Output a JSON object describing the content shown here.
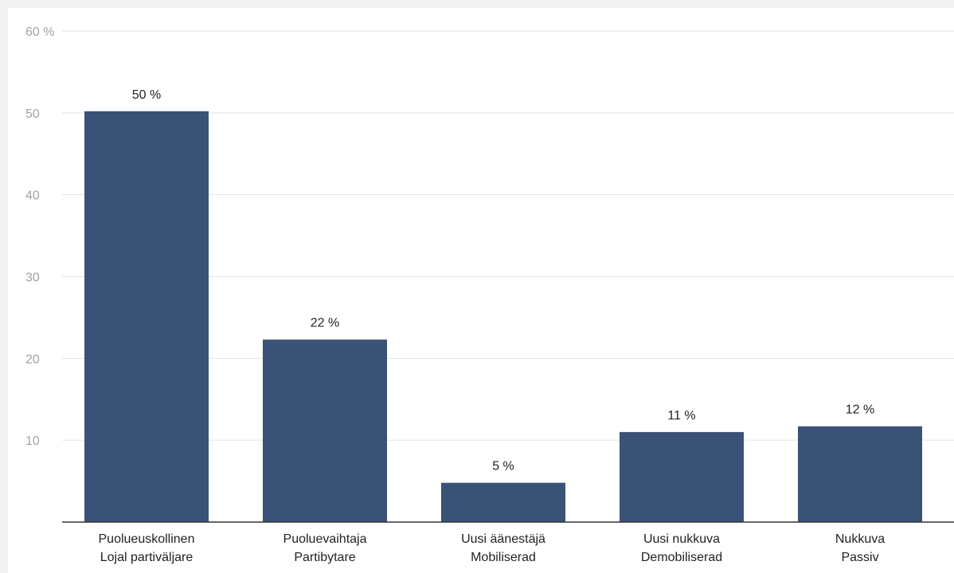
{
  "chart_data": {
    "type": "bar",
    "categories": [
      [
        "Puolueuskollinen",
        "Lojal partiväljare"
      ],
      [
        "Puoluevaihtaja",
        "Partibytare"
      ],
      [
        "Uusi äänestäjä",
        "Mobiliserad"
      ],
      [
        "Uusi nukkuva",
        "Demobiliserad"
      ],
      [
        "Nukkuva",
        "Passiv"
      ]
    ],
    "values": [
      50.2,
      22.3,
      4.8,
      11.0,
      11.7
    ],
    "data_labels": [
      "50 %",
      "22 %",
      "5 %",
      "11 %",
      "12 %"
    ],
    "ylim": [
      0,
      60
    ],
    "y_ticks": [
      10,
      20,
      30,
      40,
      50,
      60
    ],
    "y_tick_labels": [
      "10",
      "20",
      "30",
      "40",
      "50",
      "60 %"
    ],
    "grid": true,
    "title": "",
    "xlabel": "",
    "ylabel": "",
    "colors": {
      "bar": "#3a5276",
      "grid": "#e3e3e3",
      "axis": "#333333",
      "tick_text": "#a3a3a3",
      "label_text": "#222222"
    }
  }
}
